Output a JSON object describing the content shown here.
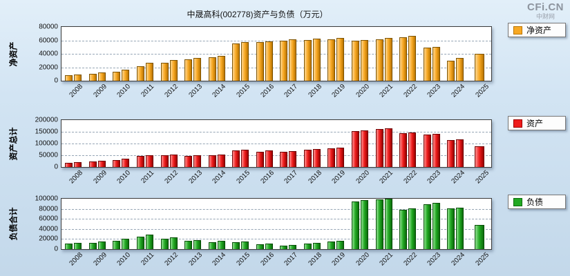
{
  "page": {
    "title": "中晟高科(002778)资产与负债（万元）",
    "logo_main": "CFi.CN",
    "logo_sub": "中财网"
  },
  "chart_data": [
    {
      "type": "bar",
      "title": "净资产",
      "ylabel": "净资产",
      "legend": "净资产",
      "legend_position": "right-outside-top",
      "grid": "dashed-horizontal",
      "ylim": [
        0,
        80000
      ],
      "yticks": [
        0,
        20000,
        40000,
        60000,
        80000
      ],
      "colors": {
        "base": "#f7a823",
        "light": "#ffd68f",
        "dark": "#b97400",
        "border": "#7c5200"
      },
      "categories": [
        "2008",
        "2009",
        "2010",
        "2011",
        "2012",
        "2013",
        "2014",
        "2015",
        "2016",
        "2017",
        "2018",
        "2019",
        "2020",
        "2021",
        "2022",
        "2023",
        "2024",
        "2025"
      ],
      "values": [
        [
          8000,
          9500
        ],
        [
          10500,
          12000
        ],
        [
          13000,
          16500
        ],
        [
          22000,
          26500
        ],
        [
          26500,
          31000
        ],
        [
          31500,
          33500
        ],
        [
          35000,
          36500
        ],
        [
          55000,
          57000
        ],
        [
          57000,
          58500
        ],
        [
          60000,
          62000
        ],
        [
          61000,
          62500
        ],
        [
          62000,
          63500
        ],
        [
          59000,
          61000
        ],
        [
          62000,
          63500
        ],
        [
          65000,
          66500
        ],
        [
          49000,
          50500
        ],
        [
          30000,
          33500
        ],
        [
          40500
        ]
      ]
    },
    {
      "type": "bar",
      "title": "资产总计",
      "ylabel": "资产总计",
      "legend": "资产",
      "legend_position": "right-outside-top",
      "grid": "dashed-horizontal",
      "ylim": [
        0,
        200000
      ],
      "yticks": [
        0,
        50000,
        100000,
        150000,
        200000
      ],
      "colors": {
        "base": "#ee1c1c",
        "light": "#ff9090",
        "dark": "#990000",
        "border": "#6e0000"
      },
      "categories": [
        "2008",
        "2009",
        "2010",
        "2011",
        "2012",
        "2013",
        "2014",
        "2015",
        "2016",
        "2017",
        "2018",
        "2019",
        "2020",
        "2021",
        "2022",
        "2023",
        "2024",
        "2025"
      ],
      "values": [
        [
          18000,
          21000
        ],
        [
          24000,
          26500
        ],
        [
          30000,
          36000
        ],
        [
          47000,
          50000
        ],
        [
          50000,
          52500
        ],
        [
          48000,
          50000
        ],
        [
          49000,
          52000
        ],
        [
          71000,
          73000
        ],
        [
          66000,
          70000
        ],
        [
          66000,
          69000
        ],
        [
          73000,
          76000
        ],
        [
          79000,
          81500
        ],
        [
          153000,
          157000
        ],
        [
          162000,
          166000
        ],
        [
          143000,
          146000
        ],
        [
          139000,
          142000
        ],
        [
          114000,
          117000
        ],
        [
          87000
        ]
      ]
    },
    {
      "type": "bar",
      "title": "负债合计",
      "ylabel": "负债合计",
      "legend": "负债",
      "legend_position": "right-outside-top",
      "grid": "dashed-horizontal",
      "ylim": [
        0,
        100000
      ],
      "yticks": [
        0,
        20000,
        40000,
        60000,
        80000,
        100000
      ],
      "colors": {
        "base": "#22a822",
        "light": "#8fe08f",
        "dark": "#0c6b0c",
        "border": "#074d07"
      },
      "categories": [
        "2008",
        "2009",
        "2010",
        "2011",
        "2012",
        "2013",
        "2014",
        "2015",
        "2016",
        "2017",
        "2018",
        "2019",
        "2020",
        "2021",
        "2022",
        "2023",
        "2024",
        "2025"
      ],
      "values": [
        [
          11000,
          12500
        ],
        [
          13000,
          14500
        ],
        [
          17000,
          21000
        ],
        [
          25000,
          28500
        ],
        [
          21000,
          23500
        ],
        [
          16000,
          17500
        ],
        [
          14000,
          16000
        ],
        [
          14000,
          15500
        ],
        [
          9000,
          11000
        ],
        [
          7000,
          8500
        ],
        [
          11000,
          13000
        ],
        [
          15000,
          17000
        ],
        [
          95000,
          97000
        ],
        [
          99000,
          100000
        ],
        [
          78000,
          80500
        ],
        [
          89000,
          91500
        ],
        [
          81000,
          82500
        ],
        [
          48500
        ]
      ]
    }
  ]
}
